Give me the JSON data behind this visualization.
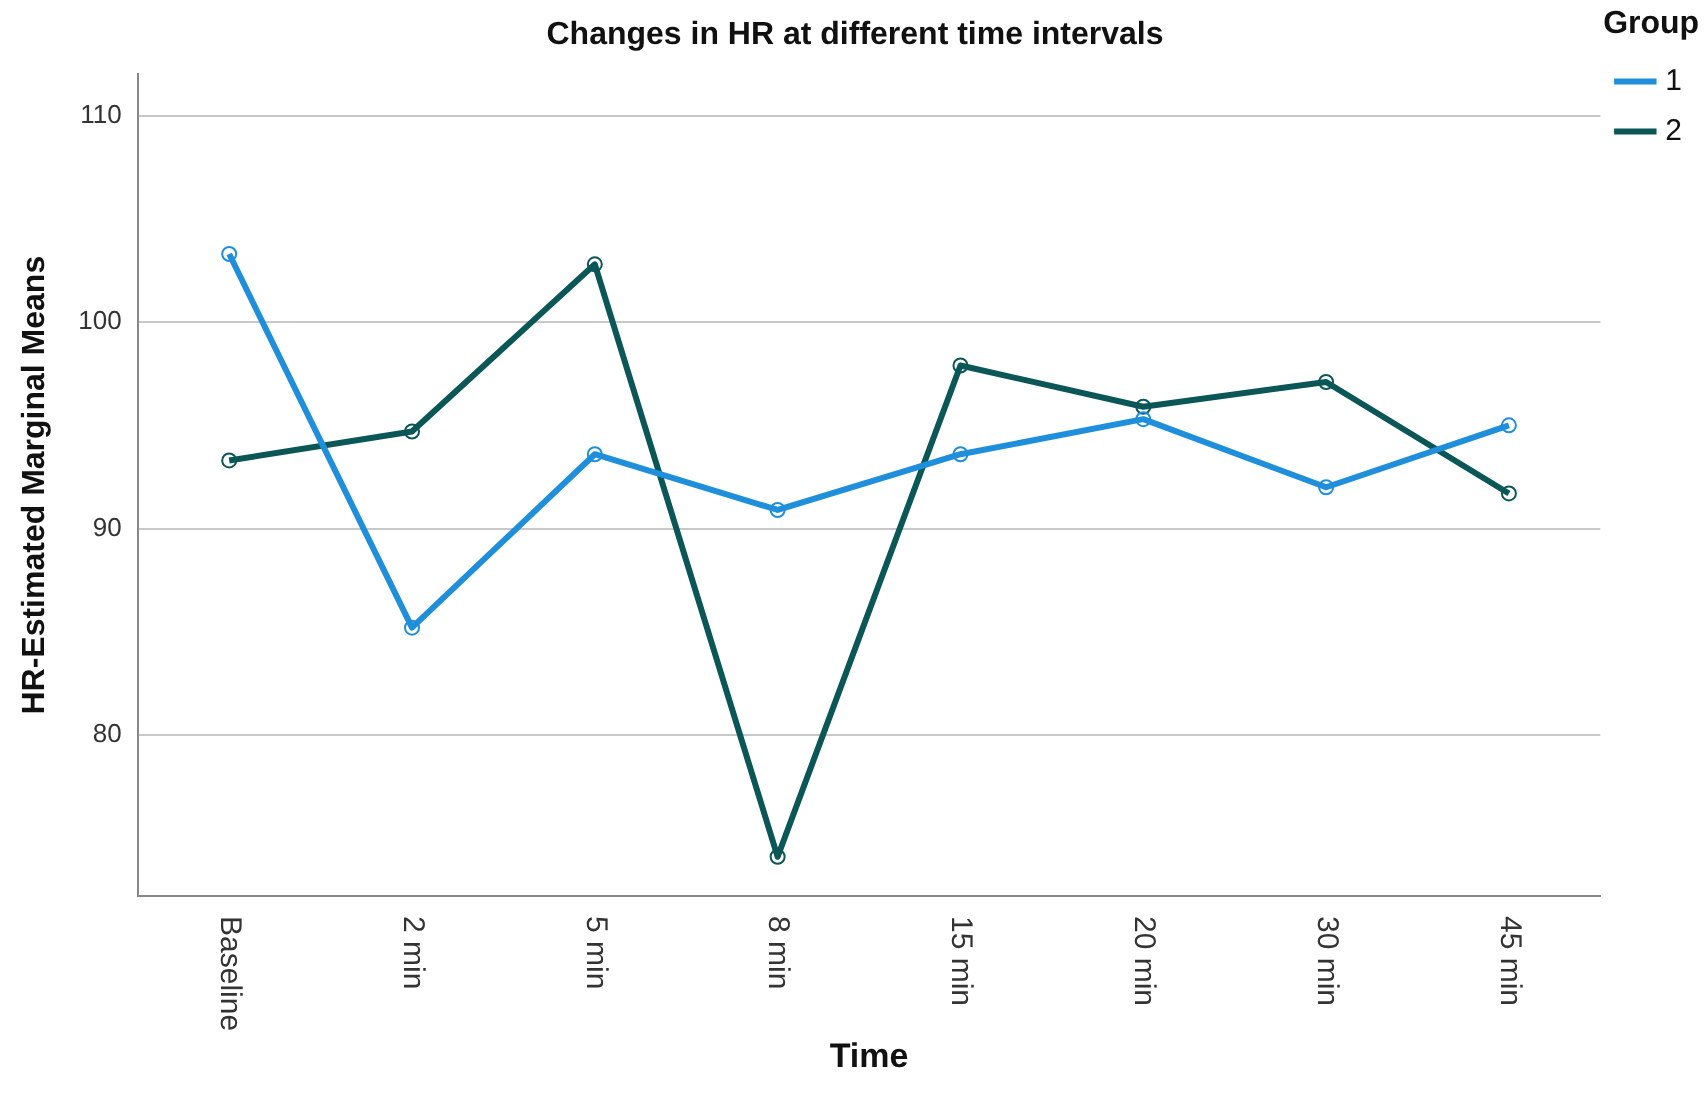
{
  "chart_data": {
    "type": "line",
    "title": "Changes in HR at different time intervals",
    "xlabel": "Time",
    "ylabel": "HR-Estimated Marginal Means",
    "legend_title": "Group",
    "categories": [
      "Baseline",
      "2 min",
      "5 min",
      "8 min",
      "15 min",
      "20 min",
      "30 min",
      "45 min"
    ],
    "series": [
      {
        "name": "1",
        "color": "#1f8fdc",
        "values": [
          103.3,
          85.2,
          93.6,
          90.9,
          93.6,
          95.3,
          92.0,
          95.0
        ]
      },
      {
        "name": "2",
        "color": "#0b5656",
        "values": [
          93.3,
          94.7,
          102.8,
          74.1,
          97.9,
          95.9,
          97.1,
          91.7
        ]
      }
    ],
    "ylim": [
      72.2,
      112
    ],
    "yticks": [
      80,
      90,
      100,
      110
    ],
    "grid": "y",
    "legend": "top right",
    "marker": "circle",
    "line_style": "solid"
  }
}
